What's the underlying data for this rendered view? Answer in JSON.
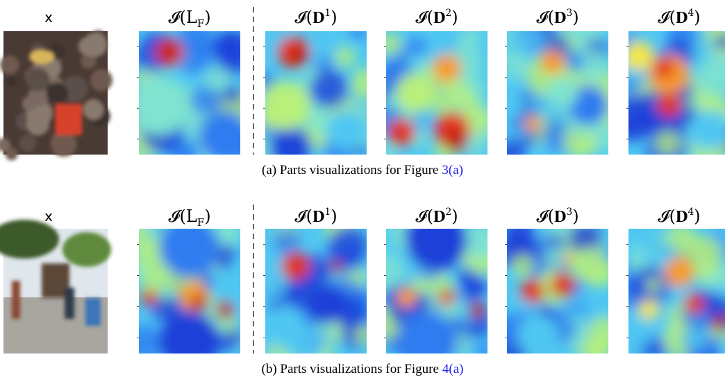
{
  "panels": [
    {
      "input_label": "x",
      "columns": [
        {
          "main": "𝓘(L",
          "sub": "F",
          "close": ")"
        },
        {
          "main": "𝓘(𝐃",
          "sup": "1",
          "close": ")"
        },
        {
          "main": "𝓘(𝐃",
          "sup": "2",
          "close": ")"
        },
        {
          "main": "𝓘(𝐃",
          "sup": "3",
          "close": ")"
        },
        {
          "main": "𝓘(𝐃",
          "sup": "4",
          "close": ")"
        }
      ],
      "caption": {
        "text": "(a) Parts visualizations for Figure",
        "ref": "3(a)"
      }
    },
    {
      "input_label": "x",
      "columns": [
        {
          "main": "𝓘(L",
          "sub": "F",
          "close": ")"
        },
        {
          "main": "𝓘(𝐃",
          "sup": "1",
          "close": ")"
        },
        {
          "main": "𝓘(𝐃",
          "sup": "2",
          "close": ")"
        },
        {
          "main": "𝓘(𝐃",
          "sup": "3",
          "close": ")"
        },
        {
          "main": "𝓘(𝐃",
          "sup": "4",
          "close": ")"
        }
      ],
      "caption": {
        "text": "(b) Parts visualizations for Figure",
        "ref": "4(a)"
      }
    }
  ]
}
